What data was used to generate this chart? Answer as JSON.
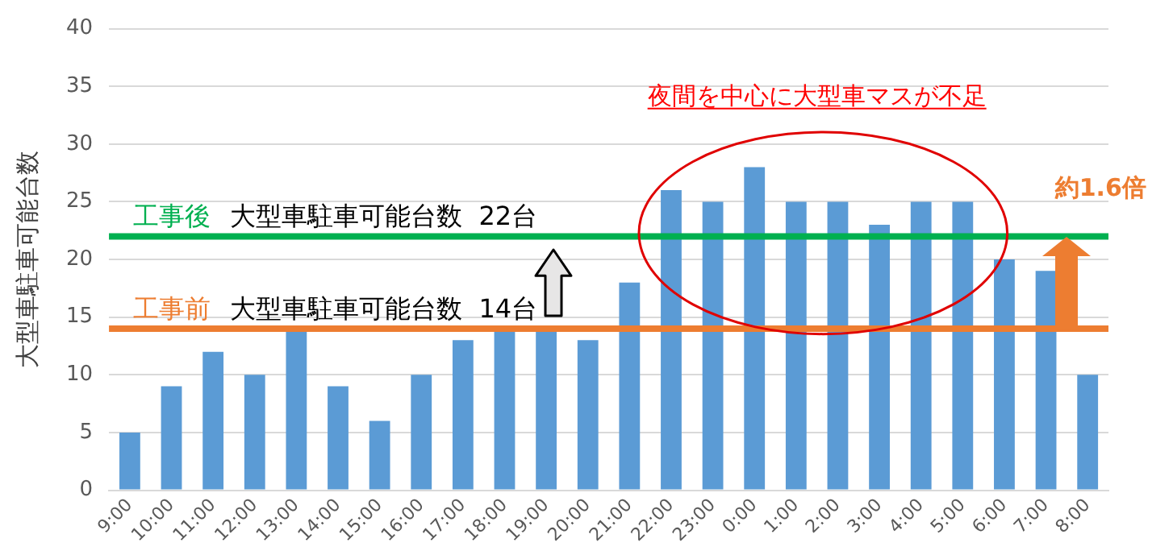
{
  "chart_data": {
    "type": "bar",
    "ylabel": "大型車駐車可能台数",
    "categories": [
      "9:00",
      "10:00",
      "11:00",
      "12:00",
      "13:00",
      "14:00",
      "15:00",
      "16:00",
      "17:00",
      "18:00",
      "19:00",
      "20:00",
      "21:00",
      "22:00",
      "23:00",
      "0:00",
      "1:00",
      "2:00",
      "3:00",
      "4:00",
      "5:00",
      "6:00",
      "7:00",
      "8:00"
    ],
    "values": [
      5,
      9,
      12,
      10,
      14,
      9,
      6,
      10,
      13,
      14,
      14,
      13,
      18,
      26,
      25,
      28,
      25,
      25,
      23,
      25,
      25,
      20,
      19,
      10
    ],
    "color": "#5b9bd5",
    "ylim": [
      0,
      40
    ],
    "yticks": [
      0,
      5,
      10,
      15,
      20,
      25,
      30,
      35,
      40
    ],
    "grid": "y",
    "legend": false,
    "ref_lines": [
      {
        "axis": "y",
        "value": 22,
        "label": "工事後",
        "color": "#00b050"
      },
      {
        "axis": "y",
        "value": 14,
        "label": "工事前",
        "color": "#ed7d31"
      }
    ],
    "annotations": [
      "大型車駐車可能台数  22台",
      "大型車駐車可能台数  14台",
      "夜間を中心に大型車マスが不足",
      "約1.6倍"
    ]
  }
}
